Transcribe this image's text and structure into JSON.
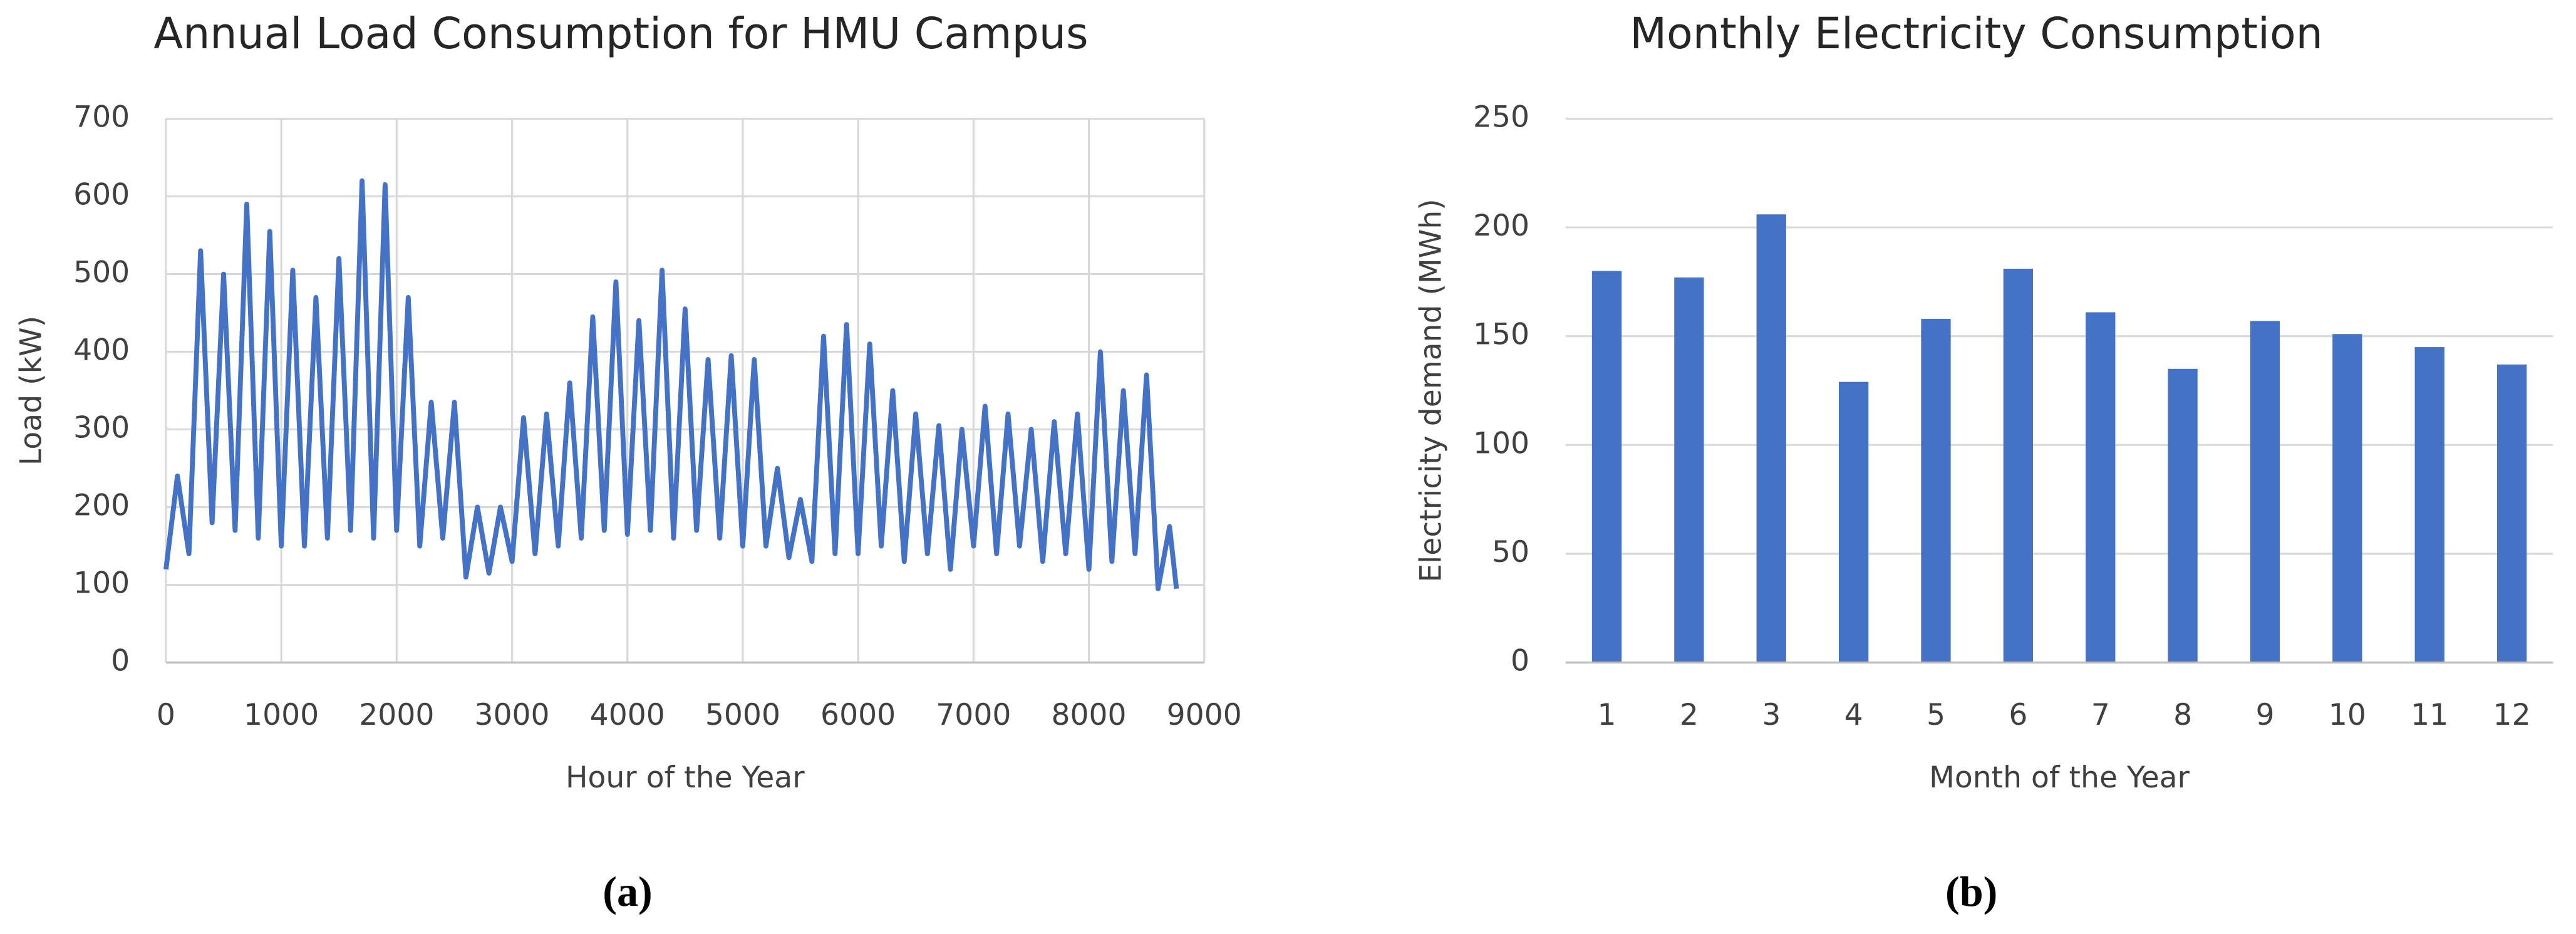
{
  "chart_data": [
    {
      "type": "line",
      "title": "Annual Load Consumption for HMU Campus",
      "x_label": "Hour of the Year",
      "y_label": "Load (kW)",
      "caption": "(a)",
      "x": [
        0,
        100,
        200,
        300,
        400,
        500,
        600,
        700,
        800,
        900,
        1000,
        1100,
        1200,
        1300,
        1400,
        1500,
        1600,
        1700,
        1800,
        1900,
        2000,
        2100,
        2200,
        2300,
        2400,
        2500,
        2600,
        2700,
        2800,
        2900,
        3000,
        3100,
        3200,
        3300,
        3400,
        3500,
        3600,
        3700,
        3800,
        3900,
        4000,
        4100,
        4200,
        4300,
        4400,
        4500,
        4600,
        4700,
        4800,
        4900,
        5000,
        5100,
        5200,
        5300,
        5400,
        5500,
        5600,
        5700,
        5800,
        5900,
        6000,
        6100,
        6200,
        6300,
        6400,
        6500,
        6600,
        6700,
        6800,
        6900,
        7000,
        7100,
        7200,
        7300,
        7400,
        7500,
        7600,
        7700,
        7800,
        7900,
        8000,
        8100,
        8200,
        8300,
        8400,
        8500,
        8600,
        8700,
        8760
      ],
      "series": [
        {
          "name": "Load",
          "color": "#4472c4",
          "values": [
            120,
            240,
            140,
            530,
            180,
            500,
            170,
            590,
            160,
            555,
            150,
            505,
            150,
            470,
            160,
            520,
            170,
            620,
            160,
            615,
            170,
            470,
            150,
            335,
            160,
            335,
            110,
            200,
            115,
            200,
            130,
            315,
            140,
            320,
            150,
            360,
            160,
            445,
            170,
            490,
            165,
            440,
            170,
            505,
            160,
            455,
            170,
            390,
            160,
            395,
            150,
            390,
            150,
            250,
            135,
            210,
            130,
            420,
            140,
            435,
            140,
            410,
            150,
            350,
            130,
            320,
            140,
            305,
            120,
            300,
            150,
            330,
            140,
            320,
            150,
            300,
            130,
            310,
            140,
            320,
            120,
            400,
            130,
            350,
            140,
            370,
            95,
            175,
            95
          ]
        }
      ],
      "xlim": [
        0,
        9000
      ],
      "xticks": [
        0,
        1000,
        2000,
        3000,
        4000,
        5000,
        6000,
        7000,
        8000,
        9000
      ],
      "ylim": [
        0,
        700
      ],
      "yticks": [
        0,
        100,
        200,
        300,
        400,
        500,
        600,
        700
      ],
      "grid": true
    },
    {
      "type": "bar",
      "title": "Monthly Electricity Consumption",
      "x_label": "Month of the Year",
      "y_label": "Electricity demand (MWh)",
      "caption": "(b)",
      "categories": [
        "1",
        "2",
        "3",
        "4",
        "5",
        "6",
        "7",
        "8",
        "9",
        "10",
        "11",
        "12"
      ],
      "series": [
        {
          "name": "Electricity demand",
          "color": "#4472c4",
          "values": [
            180,
            177,
            206,
            129,
            158,
            181,
            161,
            135,
            157,
            151,
            145,
            137
          ]
        }
      ],
      "ylim": [
        0,
        250
      ],
      "yticks": [
        0,
        50,
        100,
        150,
        200,
        250
      ],
      "grid": true
    }
  ]
}
